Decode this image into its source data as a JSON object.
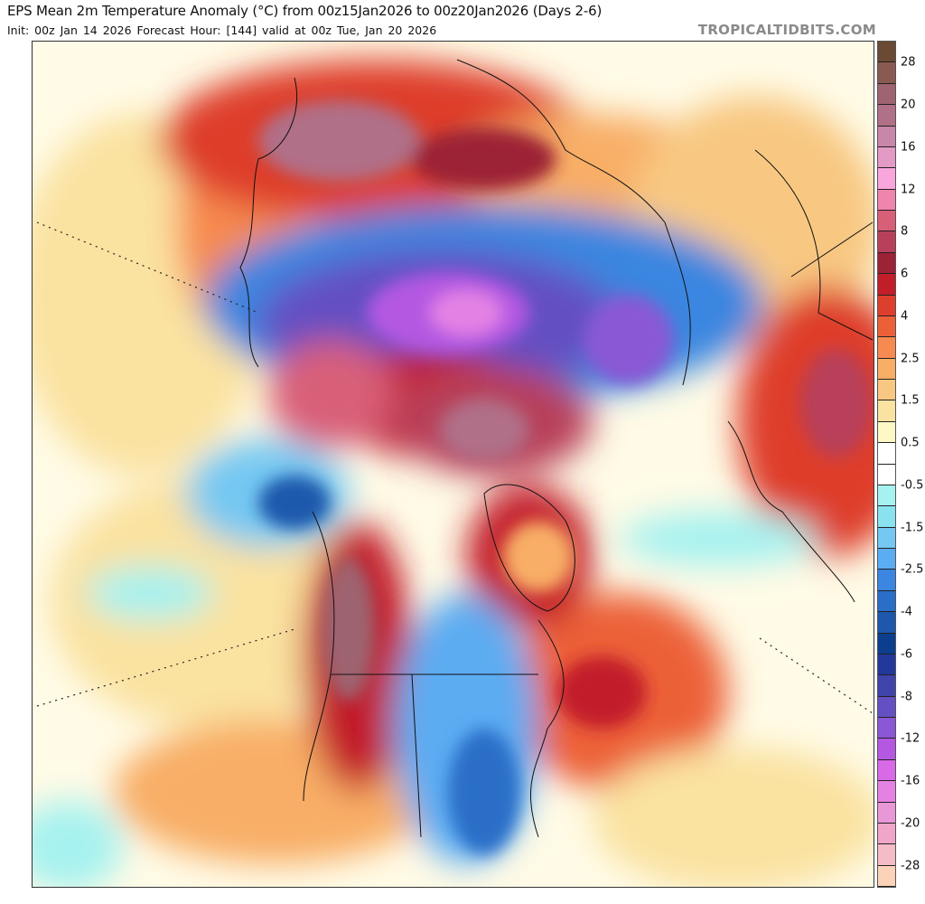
{
  "header": {
    "title": "EPS Mean 2m Temperature Anomaly (°C) from 00z15Jan2026 to 00z20Jan2026 (Days 2-6)",
    "subtitle": "Init: 00z Jan 14 2026   Forecast Hour: [144]   valid at 00z Tue, Jan 20 2026",
    "brand": "TROPICALTIDBITS.COM"
  },
  "colorbar": {
    "colors": [
      "#6b4a34",
      "#8a5a52",
      "#9e6470",
      "#b07088",
      "#c886a8",
      "#e39ac4",
      "#f8a6dc",
      "#ef84ac",
      "#d85f78",
      "#b8405a",
      "#9c2236",
      "#c21e2a",
      "#de3e2c",
      "#ec6038",
      "#f68a50",
      "#f8ae66",
      "#f8c882",
      "#fae2a0",
      "#fef8c6",
      "#ffffff",
      "#ffffff",
      "#a6f2f0",
      "#8ae2ee",
      "#74c8f2",
      "#5cacf2",
      "#3a86e0",
      "#2a6ec8",
      "#1e58ac",
      "#0c3e8e",
      "#22389a",
      "#3e44aa",
      "#6450c2",
      "#8a58d4",
      "#b458e2",
      "#d86ae8",
      "#e482e4",
      "#e898d6",
      "#f0a6c8",
      "#f4bcc4",
      "#fcd2b8"
    ],
    "labels": [
      {
        "text": "28",
        "edge": 1
      },
      {
        "text": "20",
        "edge": 3
      },
      {
        "text": "16",
        "edge": 5
      },
      {
        "text": "12",
        "edge": 7
      },
      {
        "text": "8",
        "edge": 9
      },
      {
        "text": "6",
        "edge": 11
      },
      {
        "text": "4",
        "edge": 13
      },
      {
        "text": "2.5",
        "edge": 15
      },
      {
        "text": "1.5",
        "edge": 17
      },
      {
        "text": "0.5",
        "edge": 19
      },
      {
        "text": "-0.5",
        "edge": 21
      },
      {
        "text": "-1.5",
        "edge": 23
      },
      {
        "text": "-2.5",
        "edge": 25
      },
      {
        "text": "-4",
        "edge": 27
      },
      {
        "text": "-6",
        "edge": 29
      },
      {
        "text": "-8",
        "edge": 31
      },
      {
        "text": "-12",
        "edge": 33
      },
      {
        "text": "-16",
        "edge": 35
      },
      {
        "text": "-20",
        "edge": 37
      },
      {
        "text": "-28",
        "edge": 39
      }
    ]
  }
}
